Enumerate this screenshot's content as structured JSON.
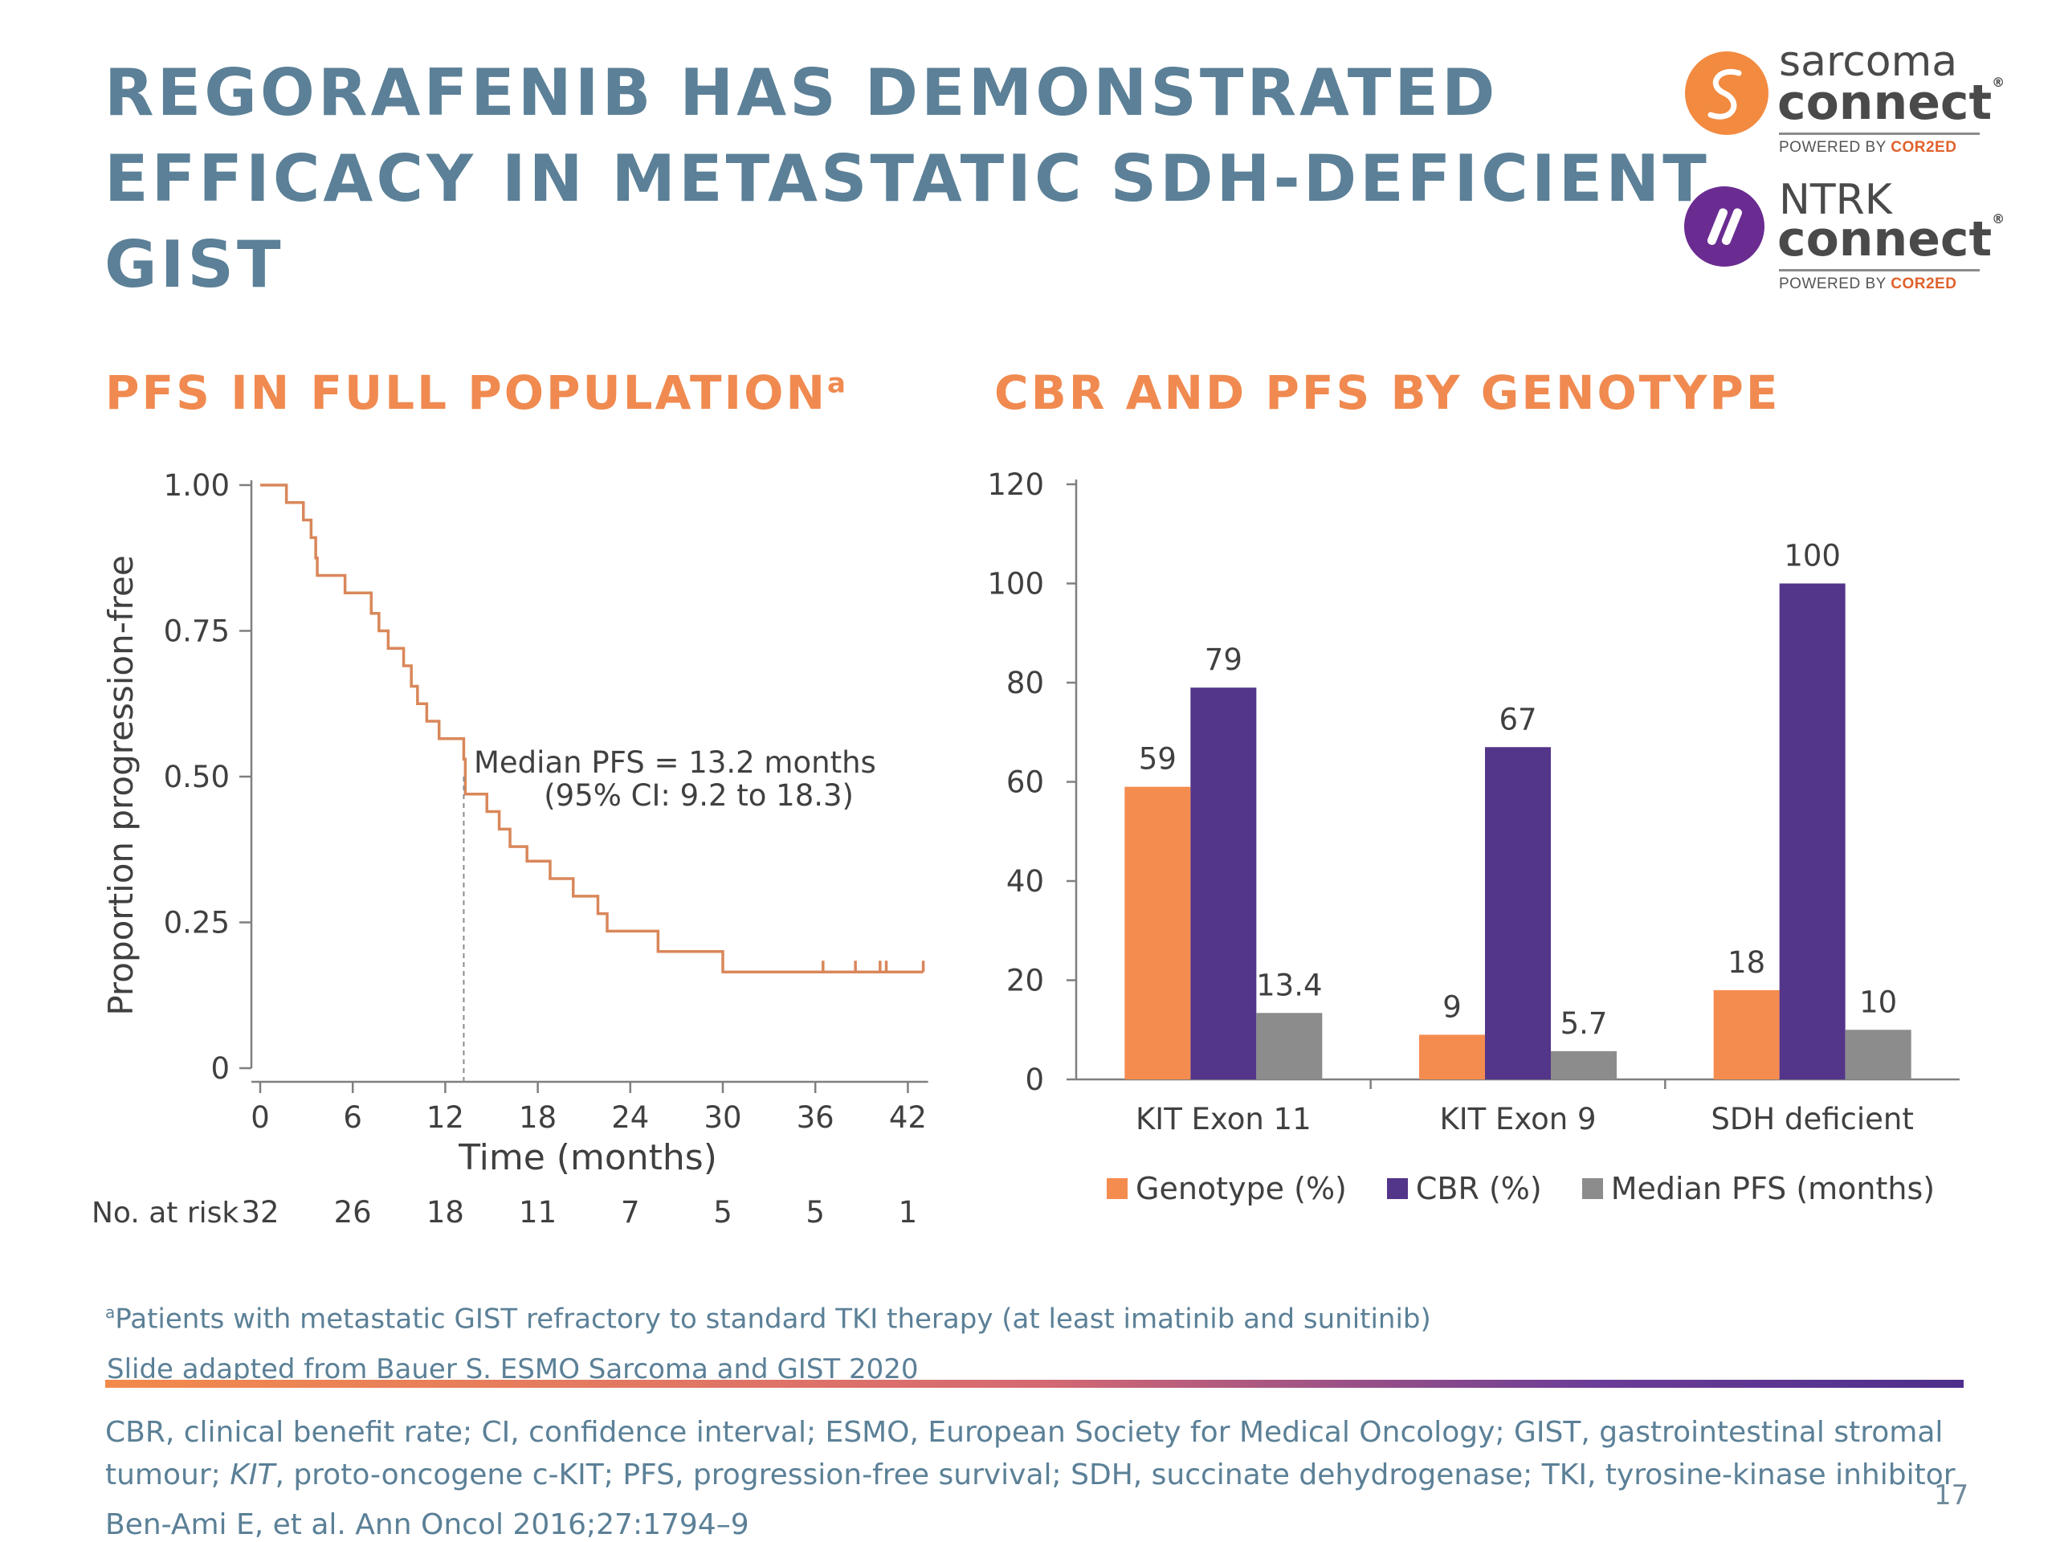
{
  "title": {
    "lines": [
      "REGORAFENIB HAS DEMONSTRATED",
      "EFFICACY IN METASTATIC SDH-DEFICIENT",
      "GIST"
    ]
  },
  "logos": {
    "sarcoma": {
      "word1": "sarcoma",
      "word2": "connect",
      "reg": "®",
      "powered_prefix": "POWERED BY ",
      "powered_brand": "COR2ED"
    },
    "ntrk": {
      "word1": "NTRK",
      "word2": "connect",
      "reg": "®",
      "powered_prefix": "POWERED BY ",
      "powered_brand": "COR2ED"
    }
  },
  "colors": {
    "title": "#5b8097",
    "subtitle": "#f08a50",
    "km_line": "#d9875a",
    "genotype": "#f58c4f",
    "cbr": "#533589",
    "median_pfs": "#8c8c8c",
    "sarcoma_logo": "#f28a40",
    "ntrk_logo": "#6a2c91"
  },
  "left": {
    "subtitle": "PFS IN FULL POPULATION",
    "subtitle_sup": "a",
    "ylabel": "Proportion progression-free",
    "xlabel": "Time (months)",
    "median_line1": "Median PFS = 13.2 months",
    "median_line2": "(95% CI: 9.2 to 18.3)",
    "risk_label": "No. at risk"
  },
  "right": {
    "subtitle": "CBR AND PFS BY GENOTYPE"
  },
  "chart_data": [
    {
      "type": "line",
      "kind": "kaplan-meier",
      "xlabel": "Time (months)",
      "ylabel": "Proportion progression-free",
      "xticks": [
        0,
        6,
        12,
        18,
        24,
        30,
        36,
        42
      ],
      "yticks": [
        0,
        0.25,
        0.5,
        0.75,
        1.0
      ],
      "ytick_labels": [
        "0",
        "0.25",
        "0.50",
        "0.75",
        "1.00"
      ],
      "xlim": [
        0,
        43
      ],
      "ylim": [
        0,
        1
      ],
      "steps": [
        [
          0,
          1.0
        ],
        [
          1.7,
          0.97
        ],
        [
          2.8,
          0.94
        ],
        [
          3.3,
          0.91
        ],
        [
          3.6,
          0.875
        ],
        [
          3.7,
          0.845
        ],
        [
          5.5,
          0.815
        ],
        [
          7.2,
          0.78
        ],
        [
          7.7,
          0.75
        ],
        [
          8.3,
          0.72
        ],
        [
          9.3,
          0.69
        ],
        [
          9.8,
          0.655
        ],
        [
          10.2,
          0.625
        ],
        [
          10.8,
          0.595
        ],
        [
          11.6,
          0.565
        ],
        [
          13.2,
          0.53
        ],
        [
          13.3,
          0.47
        ],
        [
          14.7,
          0.44
        ],
        [
          15.5,
          0.41
        ],
        [
          16.2,
          0.38
        ],
        [
          17.3,
          0.355
        ],
        [
          18.8,
          0.325
        ],
        [
          20.3,
          0.295
        ],
        [
          21.9,
          0.265
        ],
        [
          22.5,
          0.235
        ],
        [
          25.8,
          0.2
        ],
        [
          30.0,
          0.165
        ],
        [
          43.0,
          0.165
        ]
      ],
      "censor_marks": [
        36.5,
        38.6,
        40.2,
        40.6,
        43.0
      ],
      "median_pfs": 13.2,
      "number_at_risk": {
        "times": [
          0,
          6,
          12,
          18,
          24,
          30,
          36,
          42
        ],
        "counts": [
          32,
          26,
          18,
          11,
          7,
          5,
          5,
          1
        ]
      }
    },
    {
      "type": "bar",
      "categories": [
        "KIT Exon 11",
        "KIT Exon 9",
        "SDH deficient"
      ],
      "series": [
        {
          "name": "Genotype (%)",
          "values": [
            59,
            9,
            18
          ]
        },
        {
          "name": "CBR (%)",
          "values": [
            79,
            67,
            100
          ]
        },
        {
          "name": "Median PFS (months)",
          "values": [
            13.4,
            5.7,
            10
          ]
        }
      ],
      "value_labels": [
        [
          "59",
          "9",
          "18"
        ],
        [
          "79",
          "67",
          "100"
        ],
        [
          "13.4",
          "5.7",
          "10"
        ]
      ],
      "yticks": [
        0,
        20,
        40,
        60,
        80,
        100,
        120
      ],
      "ylim": [
        0,
        120
      ],
      "legend_position": "bottom"
    }
  ],
  "footnotes": {
    "note_a_sup": "a",
    "note_a": "Patients with metastatic GIST refractory to standard TKI therapy (at least imatinib and sunitinib)",
    "adapted": "Slide adapted from Bauer S. ESMO Sarcoma and GIST 2020",
    "abbrev_line1": "CBR, clinical benefit rate; CI, confidence interval; ESMO, European Society for Medical Oncology; GIST, gastrointestinal stromal",
    "abbrev_line2_pre": "tumour; ",
    "abbrev_line2_kit": "KIT",
    "abbrev_line2_post": ", proto-oncogene c-KIT; PFS, progression-free survival; SDH, succinate dehydrogenase; TKI, tyrosine-kinase inhibitor",
    "reference": "Ben-Ami E, et al. Ann Oncol 2016;27:1794–9",
    "page_number": "17"
  }
}
